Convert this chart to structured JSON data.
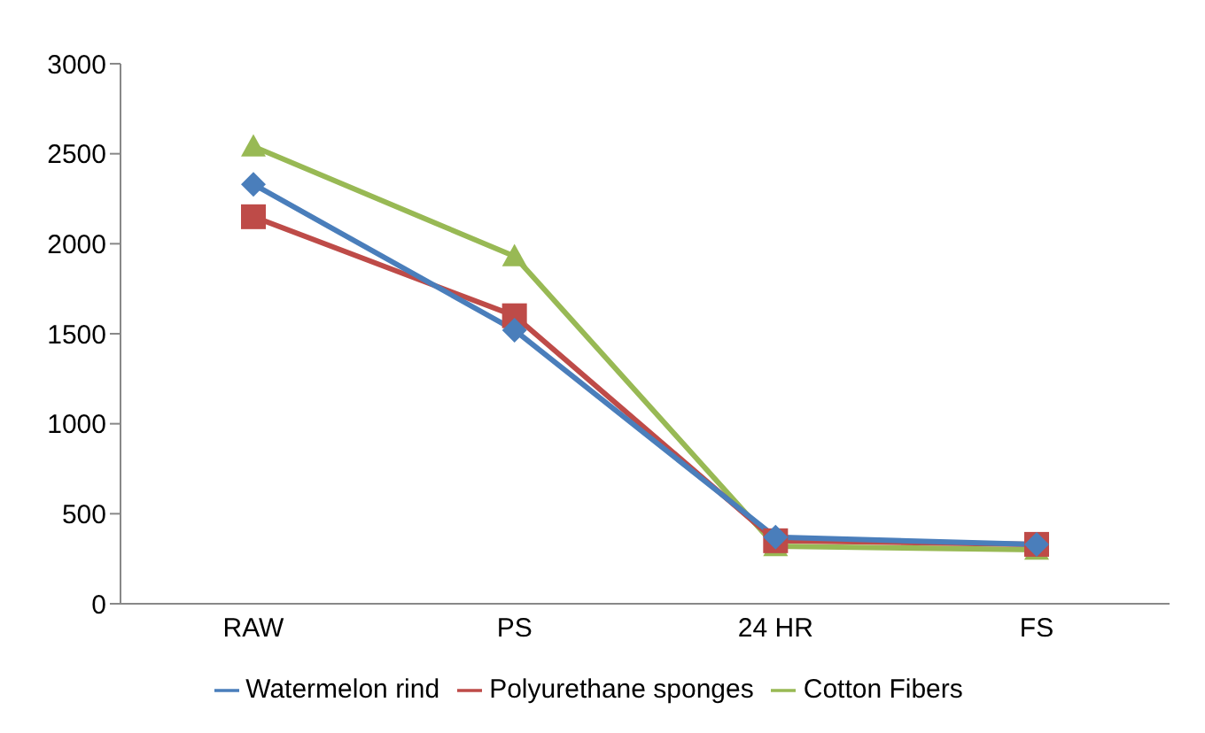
{
  "chart_data": {
    "type": "line",
    "categories": [
      "RAW",
      "PS",
      "24 HR",
      "FS"
    ],
    "series": [
      {
        "name": "Watermelon rind",
        "color": "#4a7ebb",
        "marker": "diamond",
        "values": [
          2330,
          1520,
          370,
          330
        ]
      },
      {
        "name": "Polyurethane sponges",
        "color": "#be4b48",
        "marker": "square",
        "values": [
          2150,
          1600,
          350,
          330
        ]
      },
      {
        "name": "Cotton Fibers",
        "color": "#98b954",
        "marker": "triangle",
        "values": [
          2540,
          1930,
          320,
          300
        ]
      }
    ],
    "ylim": [
      0,
      3000
    ],
    "yticks": [
      0,
      500,
      1000,
      1500,
      2000,
      2500,
      3000
    ],
    "grid": false,
    "legend": "bottom"
  }
}
